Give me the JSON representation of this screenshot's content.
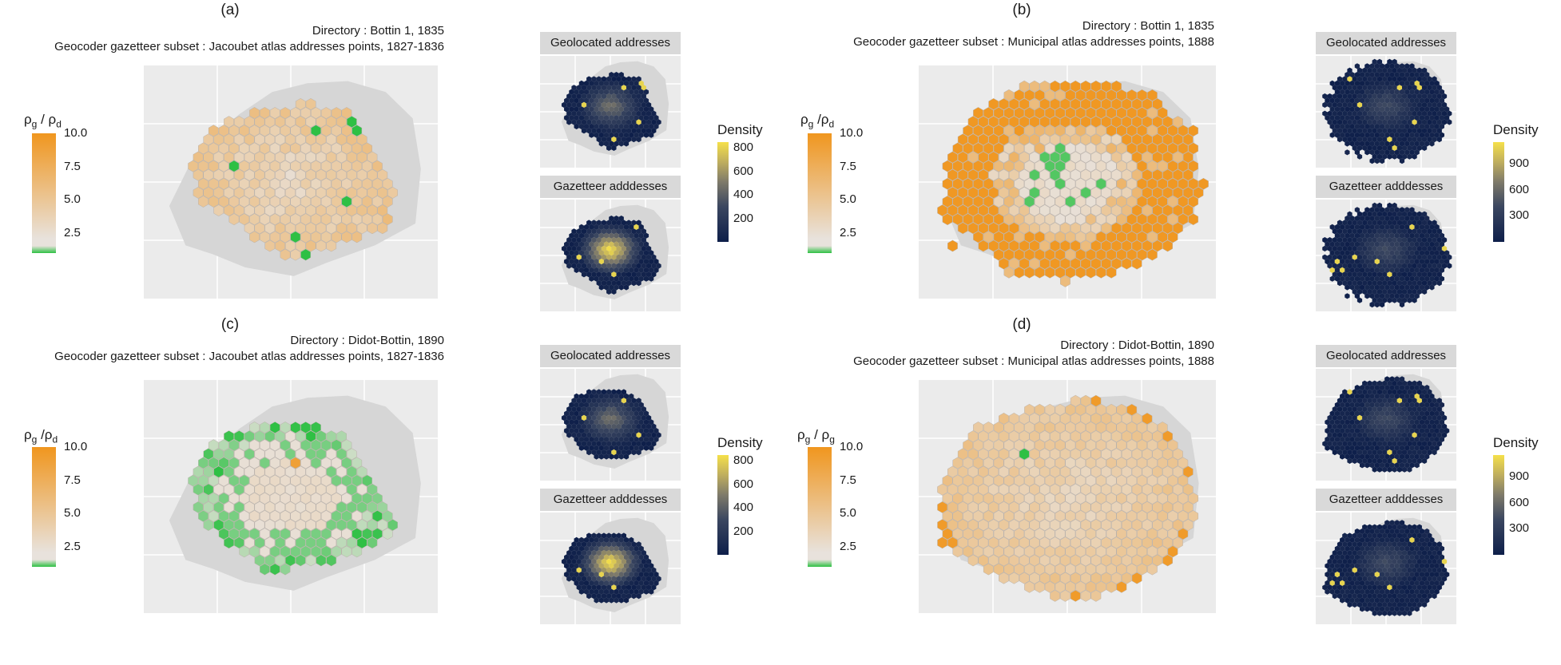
{
  "colors": {
    "ratio_high": "#f0961e",
    "ratio_mid": "#e8e2dc",
    "ratio_low": "#2ec044",
    "density_low": "#0e1f4a",
    "density_high": "#f5e04a",
    "panel_bg": "#ebebeb",
    "paris_shape": "#d6d6d6",
    "strip_bg": "#d9d9d9"
  },
  "chart_data": [
    {
      "id": "a",
      "type": "heatmap",
      "panel_label": "(a)",
      "subtitle_line1": "Directory : Bottin 1, 1835",
      "subtitle_line2": "Geocoder gazetteer subset : Jacoubet atlas addresses points, 1827-1836",
      "ratio_legend": {
        "title": "ρg / ρd",
        "ticks": [
          "10.0",
          "7.5",
          "5.0",
          "2.5"
        ],
        "range": [
          1,
          10
        ]
      },
      "pattern": "jacoubet_1835",
      "facets": [
        "Geolocated addresses",
        "Gazetteer adddesses"
      ],
      "density_legend": {
        "title": "Density",
        "ticks": [
          "800",
          "600",
          "400",
          "200"
        ],
        "range": [
          0,
          850
        ]
      }
    },
    {
      "id": "b",
      "type": "heatmap",
      "panel_label": "(b)",
      "subtitle_line1": "Directory : Bottin 1, 1835",
      "subtitle_line2": "Geocoder gazetteer subset : Municipal atlas addresses points, 1888",
      "ratio_legend": {
        "title": "ρg /ρd",
        "ticks": [
          "10.0",
          "7.5",
          "5.0",
          "2.5"
        ],
        "range": [
          1,
          10
        ]
      },
      "pattern": "municipal_1835",
      "facets": [
        "Geolocated addresses",
        "Gazetteer adddesses"
      ],
      "density_legend": {
        "title": "Density",
        "ticks": [
          "900",
          "600",
          "300"
        ],
        "range": [
          0,
          1150
        ]
      }
    },
    {
      "id": "c",
      "type": "heatmap",
      "panel_label": "(c)",
      "subtitle_line1": "Directory : Didot-Bottin, 1890",
      "subtitle_line2": "Geocoder gazetteer subset : Jacoubet atlas addresses points, 1827-1836",
      "ratio_legend": {
        "title": "ρg /ρd",
        "ticks": [
          "10.0",
          "7.5",
          "5.0",
          "2.5"
        ],
        "range": [
          1,
          10
        ]
      },
      "pattern": "jacoubet_1890",
      "facets": [
        "Geolocated addresses",
        "Gazetteer adddesses"
      ],
      "density_legend": {
        "title": "Density",
        "ticks": [
          "800",
          "600",
          "400",
          "200"
        ],
        "range": [
          0,
          850
        ]
      }
    },
    {
      "id": "d",
      "type": "heatmap",
      "panel_label": "(d)",
      "subtitle_line1": "Directory : Didot-Bottin, 1890",
      "subtitle_line2": "Geocoder gazetteer subset : Municipal atlas addresses points, 1888",
      "ratio_legend": {
        "title": "ρg / ρg",
        "ticks": [
          "10.0",
          "7.5",
          "5.0",
          "2.5"
        ],
        "range": [
          1,
          10
        ]
      },
      "pattern": "municipal_1890",
      "facets": [
        "Geolocated addresses",
        "Gazetteer adddesses"
      ],
      "density_legend": {
        "title": "Density",
        "ticks": [
          "900",
          "600",
          "300"
        ],
        "range": [
          0,
          1150
        ]
      }
    }
  ]
}
